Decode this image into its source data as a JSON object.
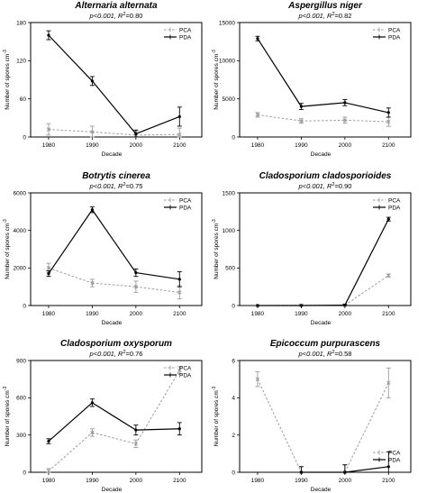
{
  "chart_data": [
    {
      "type": "line",
      "title": "Alternaria alternata",
      "stat": {
        "p": "p<0.001, ",
        "r": "R",
        "sup": "2",
        "val": "=0.80"
      },
      "xlabel": "Decade",
      "ylabel": "Number of spores cm",
      "ylabel_sup": "-3",
      "categories": [
        "1980",
        "1990",
        "2000",
        "2100"
      ],
      "ylim": [
        0,
        180
      ],
      "yticks": [
        "0",
        "60",
        "120",
        "180"
      ],
      "legend": [
        "PCA",
        "PDA"
      ],
      "legend_position": "top-right",
      "series": [
        {
          "name": "PCA",
          "values": [
            12,
            8,
            3,
            4
          ],
          "errors": [
            9,
            9,
            6,
            10
          ]
        },
        {
          "name": "PDA",
          "values": [
            160,
            88,
            5,
            32
          ],
          "errors": [
            7,
            7,
            6,
            15
          ]
        }
      ]
    },
    {
      "type": "line",
      "title": "Aspergillus niger",
      "stat": {
        "p": "p<0.001, ",
        "r": "R",
        "sup": "2",
        "val": "=0.82"
      },
      "xlabel": "Decade",
      "ylabel": "Number of spores cm",
      "ylabel_sup": "-3",
      "categories": [
        "1980",
        "1990",
        "2000",
        "2100"
      ],
      "ylim": [
        0,
        15000
      ],
      "yticks": [
        "0",
        "5000",
        "10000",
        "15000"
      ],
      "legend": [
        "PCA",
        "PDA"
      ],
      "legend_position": "top-right",
      "series": [
        {
          "name": "PCA",
          "values": [
            2900,
            2100,
            2200,
            2000
          ],
          "errors": [
            300,
            300,
            400,
            600
          ]
        },
        {
          "name": "PDA",
          "values": [
            12900,
            4000,
            4500,
            3200
          ],
          "errors": [
            300,
            400,
            400,
            600
          ]
        }
      ]
    },
    {
      "type": "line",
      "title": "Botrytis cinerea",
      "stat": {
        "p": "p<0.001, ",
        "r": "R",
        "sup": "2",
        "val": "=0.75"
      },
      "xlabel": "Decade",
      "ylabel": "Number of spores cm",
      "ylabel_sup": "-3",
      "categories": [
        "1980",
        "1990",
        "2000",
        "2100"
      ],
      "ylim": [
        0,
        6000
      ],
      "yticks": [
        "0",
        "2000",
        "4000",
        "6000"
      ],
      "legend": [
        "PCA",
        "PDA"
      ],
      "legend_position": "top-right",
      "series": [
        {
          "name": "PCA",
          "values": [
            2000,
            1200,
            1000,
            700
          ],
          "errors": [
            250,
            200,
            300,
            350
          ]
        },
        {
          "name": "PDA",
          "values": [
            1700,
            5100,
            1750,
            1400
          ],
          "errors": [
            150,
            150,
            200,
            400
          ]
        }
      ]
    },
    {
      "type": "line",
      "title": "Cladosporium cladosporioides",
      "stat": {
        "p": "p<0.001, ",
        "r": "R",
        "sup": "2",
        "val": "=0.90"
      },
      "xlabel": "Decade",
      "ylabel": "Number of spores cm",
      "ylabel_sup": "-3",
      "categories": [
        "1980",
        "1990",
        "2000",
        "2100"
      ],
      "ylim": [
        0,
        1500
      ],
      "yticks": [
        "0",
        "500",
        "1000",
        "1500"
      ],
      "legend": [
        "PCA",
        "PDA"
      ],
      "legend_position": "top-right",
      "series": [
        {
          "name": "PCA",
          "values": [
            0,
            5,
            5,
            400
          ],
          "errors": [
            0,
            10,
            10,
            20
          ]
        },
        {
          "name": "PDA",
          "values": [
            0,
            0,
            5,
            1150
          ],
          "errors": [
            0,
            0,
            10,
            25
          ]
        }
      ]
    },
    {
      "type": "line",
      "title": "Cladosporium oxysporum",
      "stat": {
        "p": "p<0.001, ",
        "r": "R",
        "sup": "2",
        "val": "=0.76"
      },
      "xlabel": "Decade",
      "ylabel": "Number of spores cm",
      "ylabel_sup": "-3",
      "categories": [
        "1980",
        "1990",
        "2000",
        "2100"
      ],
      "ylim": [
        0,
        900
      ],
      "yticks": [
        "0",
        "300",
        "600",
        "900"
      ],
      "legend": [
        "PCA",
        "PDA"
      ],
      "legend_position": "top-right",
      "series": [
        {
          "name": "PCA",
          "values": [
            10,
            320,
            230,
            820
          ],
          "errors": [
            20,
            30,
            30,
            30
          ]
        },
        {
          "name": "PDA",
          "values": [
            250,
            560,
            340,
            350
          ],
          "errors": [
            20,
            30,
            40,
            50
          ]
        }
      ]
    },
    {
      "type": "line",
      "title": "Epicoccum purpurascens",
      "stat": {
        "p": "p<0.001, ",
        "r": "R",
        "sup": "2",
        "val": "=0.58"
      },
      "xlabel": "Decade",
      "ylabel": "Number of spores cm",
      "ylabel_sup": "-3",
      "categories": [
        "1980",
        "1990",
        "2000",
        "2100"
      ],
      "ylim": [
        0,
        6
      ],
      "yticks": [
        "0",
        "2",
        "4",
        "6"
      ],
      "legend": [
        "PCA",
        "PDA"
      ],
      "legend_position": "bottom-right",
      "series": [
        {
          "name": "PCA",
          "values": [
            5,
            0,
            0,
            4.8
          ],
          "errors": [
            0.4,
            0.3,
            0.4,
            0.8
          ]
        },
        {
          "name": "PDA",
          "values": [
            null,
            0,
            0,
            0.3
          ],
          "errors": [
            0,
            0.3,
            0.4,
            0.8
          ]
        }
      ]
    }
  ]
}
